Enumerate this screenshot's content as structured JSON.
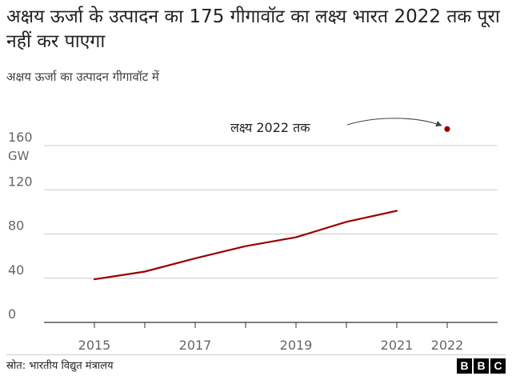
{
  "header": {
    "title": "अक्षय ऊर्जा के उत्पादन  का 175 गीगावॉट का लक्ष्य भारत 2022 तक पूरा नहीं कर पाएगा",
    "subtitle": "अक्षय ऊर्जा का उत्पादन गीगावॉट में"
  },
  "chart_data": {
    "type": "line",
    "title": "अक्षय ऊर्जा के उत्पादन  का 175 गीगावॉट का लक्ष्य भारत 2022 तक पूरा नहीं कर पाएगा",
    "subtitle": "अक्षय ऊर्जा का उत्पादन गीगावॉट में",
    "unit": "GW",
    "xlim": [
      2014,
      2023
    ],
    "ylim": [
      0,
      175
    ],
    "x_tick_values": [
      2015,
      2016,
      2017,
      2018,
      2019,
      2020,
      2021,
      2022
    ],
    "x_tick_labels": [
      "2015",
      "",
      "2017",
      "",
      "2019",
      "",
      "2021",
      "2022"
    ],
    "y_ticks": [
      0,
      40,
      80,
      120,
      160
    ],
    "grid": true,
    "series": [
      {
        "color": "#990000",
        "x": [
          2015,
          2016,
          2017,
          2018,
          2019,
          2020,
          2021
        ],
        "y": [
          39,
          46,
          58,
          69,
          77,
          91,
          101
        ]
      }
    ],
    "target": {
      "x": 2022,
      "y": 175,
      "label": "लक्ष्य 2022 तक",
      "color": "#990000"
    }
  },
  "footer": {
    "source": "स्रोत: भारतीय विद्युत मंत्रालय",
    "logo": [
      "B",
      "B",
      "C"
    ]
  }
}
